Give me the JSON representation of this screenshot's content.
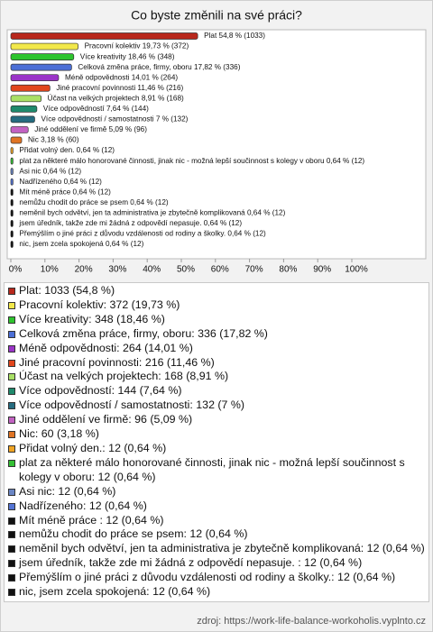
{
  "chart_data": {
    "type": "hbar",
    "title": "Co byste změnili na své práci?",
    "categories": [
      "Plat 54,8 % (1033)",
      "Pracovní kolektiv 19,73 % (372)",
      "Více kreativity 18,46 % (348)",
      "Celková změna práce, firmy, oboru 17,82 % (336)",
      "Méně odpovědnosti 14,01 % (264)",
      "Jiné pracovní povinnosti 11,46 % (216)",
      "Účast na velkých projektech 8,91 % (168)",
      "Více odpovědností 7,64 % (144)",
      "Více odpovědností / samostatnosti 7 % (132)",
      "Jiné oddělení ve firmě 5,09 % (96)",
      "Nic 3,18 % (60)",
      "Přidat volný den. 0,64 % (12)",
      "plat za některé málo honorované činnosti, jinak nic - možná lepší součinnost s kolegy v oboru 0,64 % (12)",
      "Asi nic 0,64 % (12)",
      "Nadřízeného 0,64 % (12)",
      "Mít méně práce  0,64 % (12)",
      "nemůžu chodit do práce se psem 0,64 % (12)",
      "neměnil bych odvětví, jen ta administrativa je zbytečně komplikovaná 0,64 % (12)",
      "jsem úředník, takže zde mi žádná z odpovědí nepasuje.  0,64 % (12)",
      "Přemýšlím o jiné práci z důvodu vzdálenosti od rodiny a školky. 0,64 % (12)",
      "nic, jsem zcela spokojená 0,64 % (12)"
    ],
    "values": [
      54.8,
      19.73,
      18.46,
      17.82,
      14.01,
      11.46,
      8.91,
      7.64,
      7,
      5.09,
      3.18,
      0.64,
      0.64,
      0.64,
      0.64,
      0.64,
      0.64,
      0.64,
      0.64,
      0.64,
      0.64
    ],
    "colors": [
      "#b8281c",
      "#f2e84a",
      "#2ec42e",
      "#4c6fd6",
      "#9b35c8",
      "#e2461c",
      "#a9e066",
      "#1f8a6c",
      "#256c80",
      "#c262c2",
      "#e07424",
      "#f0a424",
      "#34c034",
      "#6a86c4",
      "#5474d4",
      "#111111",
      "#111111",
      "#111111",
      "#111111",
      "#111111",
      "#111111"
    ],
    "legend": [
      "Plat: 1033 (54,8 %)",
      "Pracovní kolektiv: 372 (19,73 %)",
      "Více kreativity: 348 (18,46 %)",
      "Celková změna práce, firmy, oboru: 336 (17,82 %)",
      "Méně odpovědnosti: 264 (14,01 %)",
      "Jiné pracovní povinnosti: 216 (11,46 %)",
      "Účast na velkých projektech: 168 (8,91 %)",
      "Více odpovědností: 144 (7,64 %)",
      "Více odpovědností / samostatnosti: 132 (7 %)",
      "Jiné oddělení ve firmě: 96 (5,09 %)",
      "Nic: 60 (3,18 %)",
      "Přidat volný den.: 12 (0,64 %)",
      "plat za některé málo honorované činnosti, jinak nic - možná lepší součinnost s kolegy v oboru: 12 (0,64 %)",
      "Asi nic: 12 (0,64 %)",
      "Nadřízeného: 12 (0,64 %)",
      "Mít méně práce : 12 (0,64 %)",
      "nemůžu chodit do práce se psem: 12 (0,64 %)",
      "neměnil bych odvětví, jen ta administrativa je zbytečně komplikovaná: 12 (0,64 %)",
      "jsem úředník, takže zde mi žádná z odpovědí nepasuje. : 12 (0,64 %)",
      "Přemýšlím o jiné práci z důvodu vzdálenosti od rodiny a školky.: 12 (0,64 %)",
      "nic, jsem zcela spokojená: 12 (0,64 %)"
    ],
    "xlim": [
      0,
      100
    ],
    "xticks": [
      {
        "value": 0,
        "label": "0%"
      },
      {
        "value": 10,
        "label": "10%"
      },
      {
        "value": 20,
        "label": "20%"
      },
      {
        "value": 30,
        "label": "30%"
      },
      {
        "value": 40,
        "label": "40%"
      },
      {
        "value": 50,
        "label": "50%"
      },
      {
        "value": 60,
        "label": "60%"
      },
      {
        "value": 70,
        "label": "70%"
      },
      {
        "value": 80,
        "label": "80%"
      },
      {
        "value": 90,
        "label": "90%"
      },
      {
        "value": 100,
        "label": "100%"
      }
    ],
    "source": "zdroj: https://work-life-balance-workoholis.vyplnto.cz"
  }
}
